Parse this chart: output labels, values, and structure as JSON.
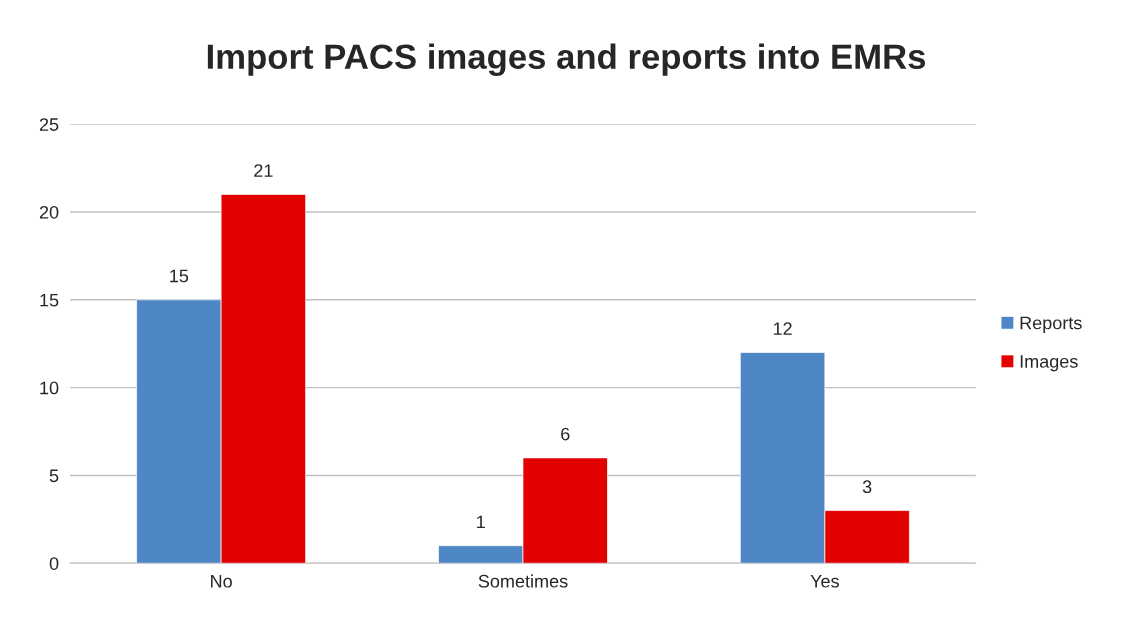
{
  "chart_data": {
    "type": "bar",
    "title": "Import PACS images and reports into EMRs",
    "categories": [
      "No",
      "Sometimes",
      "Yes"
    ],
    "series": [
      {
        "name": "Reports",
        "color": "#4f86c6",
        "values": [
          15,
          1,
          12
        ]
      },
      {
        "name": "Images",
        "color": "#e30000",
        "values": [
          21,
          6,
          3
        ]
      }
    ],
    "ylim": [
      0,
      25
    ],
    "yticks": [
      0,
      5,
      10,
      15,
      20,
      25
    ],
    "grid": "y",
    "legend": "right",
    "data_labels": true
  }
}
